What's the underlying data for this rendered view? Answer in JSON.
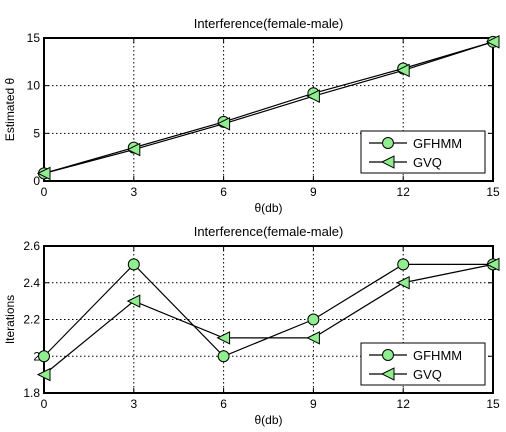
{
  "chart_data": [
    {
      "type": "line",
      "title": "Interference(female-male)",
      "xlabel": "θ(db)",
      "ylabel": "Estimated θ",
      "x": [
        0,
        3,
        6,
        9,
        12,
        15
      ],
      "xticks": [
        "0",
        "3",
        "6",
        "9",
        "12",
        "15"
      ],
      "xlim": [
        0,
        15
      ],
      "ylim": [
        0,
        15
      ],
      "yticks": [
        "0",
        "5",
        "10",
        "15"
      ],
      "grid": true,
      "legend_position": "bottom-right",
      "series": [
        {
          "name": "GFHMM",
          "marker": "circle",
          "values": [
            0.8,
            3.5,
            6.2,
            9.2,
            11.8,
            14.6
          ]
        },
        {
          "name": "GVQ",
          "marker": "triangle-left",
          "values": [
            0.8,
            3.3,
            6.0,
            8.9,
            11.6,
            14.6
          ]
        }
      ]
    },
    {
      "type": "line",
      "title": "Interference(female-male)",
      "xlabel": "θ(db)",
      "ylabel": "Iterations",
      "x": [
        0,
        3,
        6,
        9,
        12,
        15
      ],
      "xticks": [
        "0",
        "3",
        "6",
        "9",
        "12",
        "15"
      ],
      "xlim": [
        0,
        15
      ],
      "ylim": [
        1.8,
        2.6
      ],
      "yticks": [
        "1.8",
        "2",
        "2.2",
        "2.4",
        "2.6"
      ],
      "grid": true,
      "legend_position": "bottom-right",
      "series": [
        {
          "name": "GFHMM",
          "marker": "circle",
          "values": [
            2.0,
            2.5,
            2.0,
            2.2,
            2.5,
            2.5
          ]
        },
        {
          "name": "GVQ",
          "marker": "triangle-left",
          "values": [
            1.9,
            2.3,
            2.1,
            2.1,
            2.4,
            2.5
          ]
        }
      ]
    }
  ],
  "style": {
    "marker_fill": "#90ee90",
    "line_color": "#000000",
    "grid_color": "#000000"
  }
}
